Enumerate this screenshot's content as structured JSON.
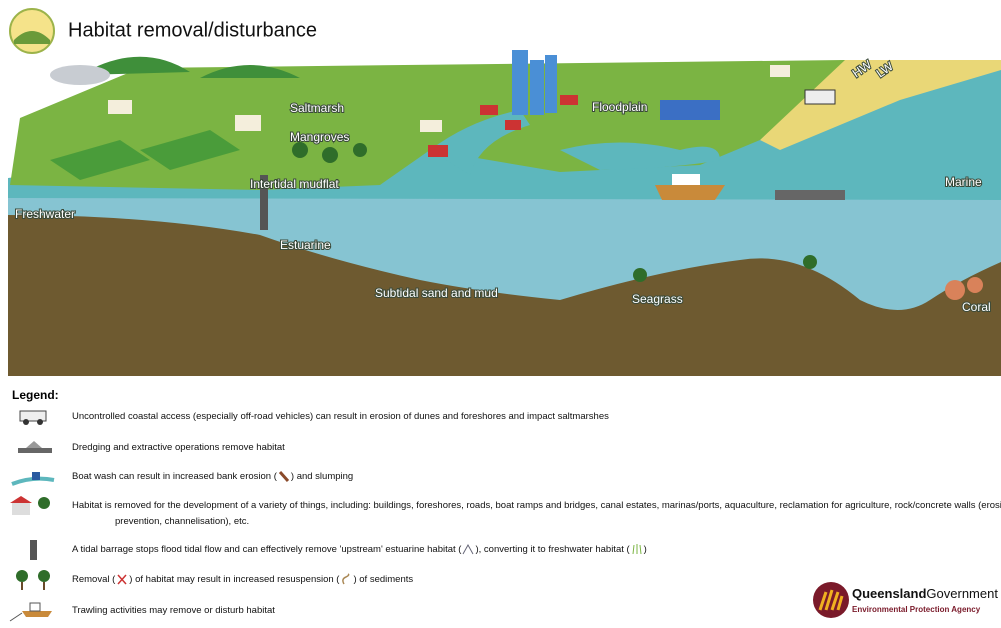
{
  "header": {
    "title": "Habitat removal/disturbance"
  },
  "scene": {
    "labels": {
      "saltmarsh": "Saltmarsh",
      "mangroves": "Mangroves",
      "floodplain": "Floodplain",
      "mudflat": "Intertidal mudflat",
      "freshwater": "Freshwater",
      "estuarine": "Estuarine",
      "subtidal": "Subtidal sand and mud",
      "seagrass": "Seagrass",
      "marine": "Marine",
      "coral": "Coral",
      "hw": "HW",
      "lw": "LW"
    }
  },
  "legend": {
    "title": "Legend:",
    "items": [
      {
        "parts": [
          "Uncontrolled coastal access (especially off-road vehicles) can result in erosion of dunes and foreshores and impact saltmarshes"
        ]
      },
      {
        "parts": [
          "Dredging and extractive operations remove habitat"
        ]
      },
      {
        "parts": [
          "Boat wash can result in increased bank erosion (",
          ") and slumping"
        ]
      },
      {
        "parts": [
          "Habitat is removed for the development of a variety of things, including: buildings, foreshores, roads, boat ramps and bridges, canal estates, marinas/ports, aquaculture, reclamation for agriculture, rock/concrete walls (erosion prevention, channelisation), etc."
        ]
      },
      {
        "parts": [
          "A tidal barrage stops flood tidal flow and can effectively remove 'upstream' estuarine habitat (",
          "), converting it to freshwater habitat (",
          ")"
        ]
      },
      {
        "parts": [
          "Removal (",
          ") of habitat may result in increased resuspension (",
          ") of sediments"
        ]
      },
      {
        "parts": [
          "Trawling activities may remove or disturb habitat"
        ]
      }
    ]
  },
  "logo": {
    "name_bold": "Queensland",
    "name_rest": "Government",
    "agency": "Environmental Protection Agency"
  }
}
